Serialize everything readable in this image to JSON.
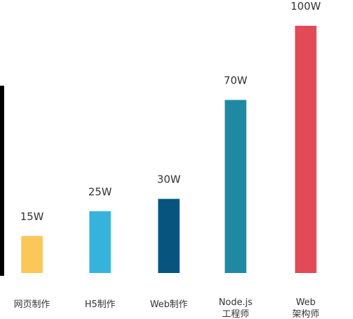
{
  "chart_data": {
    "type": "bar",
    "title": "",
    "xlabel": "",
    "ylabel": "",
    "ylim": [
      0,
      100
    ],
    "grid": false,
    "legend": "none",
    "categories": [
      [
        "网页制作"
      ],
      [
        "H5制作"
      ],
      [
        "Web制作"
      ],
      [
        "Node.js",
        "工程师"
      ],
      [
        "Web",
        "架构师"
      ]
    ],
    "values": [
      15,
      25,
      30,
      70,
      100
    ],
    "value_labels": [
      "15W",
      "25W",
      "30W",
      "70W",
      "100W"
    ],
    "colors": [
      "#FCC75A",
      "#35B3DA",
      "#07557F",
      "#1F89A3",
      "#E34A58"
    ]
  }
}
